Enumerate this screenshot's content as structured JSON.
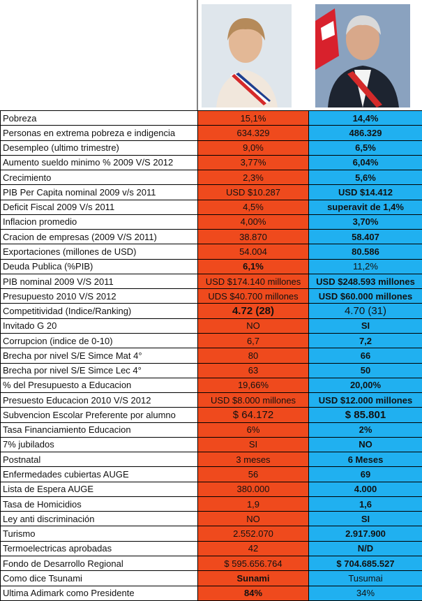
{
  "table": {
    "rows": [
      [
        "Pobreza",
        "15,1%",
        "14,4%"
      ],
      [
        "Personas en extrema pobreza e indigencia",
        "634.329",
        "486.329"
      ],
      [
        "Desempleo (ultimo trimestre)",
        "9,0%",
        "6,5%"
      ],
      [
        "Aumento sueldo minimo % 2009 V/S 2012",
        "3,77%",
        "6,04%"
      ],
      [
        "Crecimiento",
        "2,3%",
        "5,6%"
      ],
      [
        "PIB Per Capita nominal 2009 v/s 2011",
        "USD $10.287",
        "USD $14.412"
      ],
      [
        "Deficit Fiscal 2009 V/s 2011",
        "4,5%",
        "superavit de 1,4%"
      ],
      [
        "Inflacion promedio",
        "4,00%",
        "3,70%"
      ],
      [
        "Cracion de empresas (2009 V/S 2011)",
        "38.870",
        "58.407"
      ],
      [
        "Exportaciones (millones de USD)",
        "54.004",
        "80.586"
      ],
      [
        "Deuda Publica (%PIB)",
        "6,1%",
        "11,2%"
      ],
      [
        "PIB nominal 2009 V/S 2011",
        "USD $174.140 millones",
        "USD $248.593 millones"
      ],
      [
        "Presupuesto 2010 V/S 2012",
        "UDS $40.700 millones",
        "USD $60.000 millones"
      ],
      [
        "Competitividad (Indice/Ranking)",
        "4.72 (28)",
        "4.70 (31)"
      ],
      [
        "Invitado G 20",
        "NO",
        "SI"
      ],
      [
        "Corrupcion (indice de 0-10)",
        "6,7",
        "7,2"
      ],
      [
        "Brecha por nivel S/E Simce Mat 4°",
        "80",
        "66"
      ],
      [
        "Brecha por nivel S/E Simce Lec 4°",
        "63",
        "50"
      ],
      [
        "% del Presupuesto a Educacion",
        "19,66%",
        "20,00%"
      ],
      [
        "Presuesto Educacion 2010 V/S 2012",
        "USD $8.000 millones",
        "USD $12.000 millones"
      ],
      [
        "Subvencion Escolar Preferente por alumno",
        "$ 64.172",
        "$ 85.801"
      ],
      [
        "Tasa Financiamiento Educacion",
        "6%",
        "2%"
      ],
      [
        "7% jubilados",
        "SI",
        "NO"
      ],
      [
        "Postnatal",
        "3 meses",
        "6 Meses"
      ],
      [
        "Enfermedades cubiertas AUGE",
        "56",
        "69"
      ],
      [
        "Lista de Espera AUGE",
        "380.000",
        "4.000"
      ],
      [
        "Tasa de Homicidios",
        "1,9",
        "1,6"
      ],
      [
        "Ley anti discriminación",
        "NO",
        "SI"
      ],
      [
        "Turismo",
        "2.552.070",
        "2.917.900"
      ],
      [
        "Termoelectricas aprobadas",
        "42",
        "N/D"
      ],
      [
        "Fondo de Desarrollo Regional",
        "$ 595.656.764",
        "$ 704.685.527"
      ],
      [
        "Como dice Tsunami",
        "Sunami",
        "Tusumai"
      ],
      [
        "Ultima Adimark como Presidente",
        "84%",
        "34%"
      ]
    ]
  }
}
